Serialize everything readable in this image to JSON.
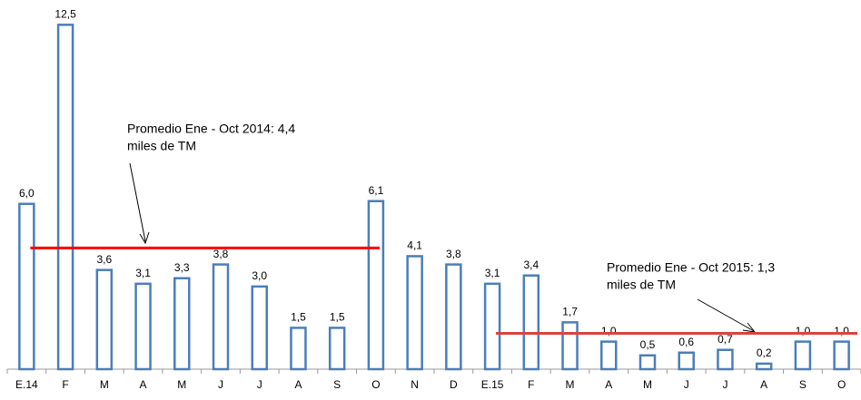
{
  "chart_data": {
    "type": "bar",
    "categories": [
      "E.14",
      "F",
      "M",
      "A",
      "M",
      "J",
      "J",
      "A",
      "S",
      "O",
      "N",
      "D",
      "E.15",
      "F",
      "M",
      "A",
      "M",
      "J",
      "J",
      "A",
      "S",
      "O"
    ],
    "values": [
      6.0,
      12.5,
      3.6,
      3.1,
      3.3,
      3.8,
      3.0,
      1.5,
      1.5,
      6.1,
      4.1,
      3.8,
      3.1,
      3.4,
      1.7,
      1.0,
      0.5,
      0.6,
      0.7,
      0.2,
      1.0,
      1.0
    ],
    "value_labels": [
      "6,0",
      "12,5",
      "3,6",
      "3,1",
      "3,3",
      "3,8",
      "3,0",
      "1,5",
      "1,5",
      "6,1",
      "4,1",
      "3,8",
      "3,1",
      "3,4",
      "1,7",
      "1,0",
      "0,5",
      "0,6",
      "0,7",
      "0,2",
      "1,0",
      "1,0"
    ],
    "color": "#4a7ebb",
    "ylim": [
      0,
      13.4
    ],
    "reference_lines": [
      {
        "value": 4.4,
        "label": "Promedio Ene - Oct 2014: 4,4",
        "sublabel": "miles de TM",
        "start": 0,
        "end": 9,
        "color": "#ff0000"
      },
      {
        "value": 1.3,
        "label": "Promedio  Ene - Oct 2015: 1,3",
        "sublabel": "miles de TM",
        "start": 12,
        "end": 21,
        "color": "#d9433f"
      }
    ]
  }
}
